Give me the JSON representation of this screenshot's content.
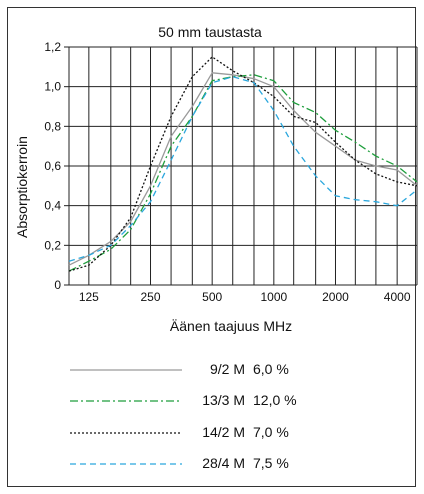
{
  "chart_data": {
    "type": "line",
    "title": "50 mm taustasta",
    "xlabel": "Äänen taajuus MHz",
    "ylabel": "Absorptiokerroin",
    "x": [
      100,
      125,
      160,
      200,
      250,
      315,
      400,
      500,
      630,
      800,
      1000,
      1250,
      1600,
      2000,
      2500,
      3150,
      4000,
      5000
    ],
    "x_tick_labels": [
      "125",
      "250",
      "500",
      "1000",
      "2000",
      "4000"
    ],
    "x_tick_values": [
      125,
      250,
      500,
      1000,
      2000,
      4000
    ],
    "xscale": "log",
    "ylim": [
      0,
      1.2
    ],
    "y_ticks": [
      "0",
      "0,2",
      "0,4",
      "0,6",
      "0,8",
      "1,0",
      "1,2"
    ],
    "grid": true,
    "legend_position": "below",
    "series": [
      {
        "name": "9/2 M",
        "value_label": "6,0 %",
        "color": "#9a9a9a",
        "dash": "solid",
        "values": [
          0.1,
          0.15,
          0.22,
          0.32,
          0.5,
          0.75,
          0.9,
          1.07,
          1.06,
          1.04,
          1.0,
          0.88,
          0.77,
          0.7,
          0.63,
          0.6,
          0.58,
          0.5
        ]
      },
      {
        "name": "13/3 M",
        "value_label": "12,0 %",
        "color": "#1e9e3c",
        "dash": "dashdot",
        "values": [
          0.07,
          0.12,
          0.18,
          0.28,
          0.46,
          0.7,
          0.85,
          1.03,
          1.05,
          1.06,
          1.03,
          0.92,
          0.87,
          0.78,
          0.72,
          0.65,
          0.6,
          0.52
        ]
      },
      {
        "name": "14/2 M",
        "value_label": "7,0 %",
        "color": "#111111",
        "dash": "dotted",
        "values": [
          0.07,
          0.1,
          0.2,
          0.34,
          0.6,
          0.85,
          1.05,
          1.15,
          1.08,
          1.02,
          0.95,
          0.85,
          0.82,
          0.72,
          0.63,
          0.56,
          0.52,
          0.5
        ]
      },
      {
        "name": "28/4 M",
        "value_label": "7,5 %",
        "color": "#2aa7dd",
        "dash": "dashed",
        "values": [
          0.12,
          0.15,
          0.2,
          0.3,
          0.42,
          0.63,
          0.85,
          1.02,
          1.05,
          1.02,
          0.88,
          0.7,
          0.55,
          0.45,
          0.43,
          0.42,
          0.4,
          0.48
        ]
      }
    ]
  }
}
